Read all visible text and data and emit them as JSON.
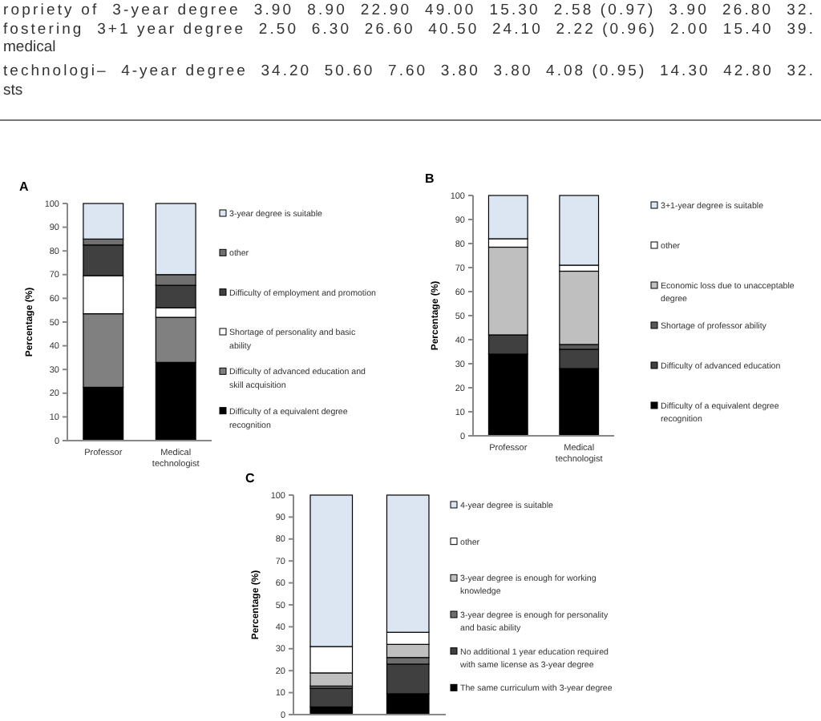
{
  "chart_data": [
    {
      "type": "other",
      "annotations": [
        "ropriety of  3-year degree  3.90  8.90  22.90  49.00  15.30  2.58 (0.97)  3.90  26.80  32.",
        "fostering  3+1 year degree  2.50  6.30  26.60  40.50  24.10  2.22 (0.96)  2.00  15.40  39.",
        "medical",
        "technologi–  4-year degree  34.20  50.60  7.60  3.80  3.80  4.08 (0.95)  14.30  42.80  32.",
        "sts"
      ]
    },
    {
      "type": "bar",
      "title": "A",
      "ylabel": "Percentage (%)",
      "categories": [
        "Professor",
        "Medical technologist"
      ],
      "stacked": true,
      "ylim": [
        0,
        100
      ],
      "yticks": [
        0,
        10,
        20,
        30,
        40,
        50,
        60,
        70,
        80,
        90,
        100
      ],
      "legend": "right",
      "series": [
        {
          "name": "Difficulty of a equivalent degree recognition",
          "color": "#000000",
          "values": [
            22.5,
            33
          ]
        },
        {
          "name": "Difficulty of advanced education and skill acquisition",
          "color": "#808080",
          "values": [
            31,
            19
          ]
        },
        {
          "name": "Shortage of personality and basic ability",
          "color": "#ffffff",
          "values": [
            16,
            4
          ]
        },
        {
          "name": "Difficulty of employment and promotion",
          "color": "#404040",
          "values": [
            13,
            9.5
          ]
        },
        {
          "name": "other",
          "color": "#707070",
          "values": [
            2.5,
            4.5
          ]
        },
        {
          "name": "3-year degree is suitable",
          "color": "#dce6f2",
          "values": [
            15,
            30
          ]
        }
      ]
    },
    {
      "type": "bar",
      "title": "B",
      "ylabel": "Percentage (%)",
      "categories": [
        "Professor",
        "Medical technologist"
      ],
      "stacked": true,
      "ylim": [
        0,
        100
      ],
      "yticks": [
        0,
        10,
        20,
        30,
        40,
        50,
        60,
        70,
        80,
        90,
        100
      ],
      "legend": "right",
      "series": [
        {
          "name": "Difficulty of a equivalent degree recognition",
          "color": "#000000",
          "values": [
            34,
            28
          ]
        },
        {
          "name": "Difficulty of advanced education",
          "color": "#404040",
          "values": [
            8,
            8
          ]
        },
        {
          "name": "Shortage of professor ability",
          "color": "#595959",
          "values": [
            0,
            2
          ]
        },
        {
          "name": "Economic loss due to unacceptable degree",
          "color": "#bfbfbf",
          "values": [
            36.5,
            30.5
          ]
        },
        {
          "name": "other",
          "color": "#ffffff",
          "values": [
            3.5,
            2.5
          ]
        },
        {
          "name": "3+1-year degree is suitable",
          "color": "#dce6f2",
          "values": [
            18,
            29
          ]
        }
      ]
    },
    {
      "type": "bar",
      "title": "C",
      "ylabel": "Percentage (%)",
      "categories": [
        null,
        null
      ],
      "stacked": true,
      "ylim": [
        0,
        100
      ],
      "yticks": [
        0,
        10,
        20,
        30,
        40,
        50,
        60,
        70,
        80,
        90,
        100
      ],
      "legend": "right",
      "series": [
        {
          "name": "The same curriculum with 3-year degree",
          "color": "#000000",
          "values": [
            3.5,
            9.5
          ]
        },
        {
          "name": "No additional 1 year education required with same license as 3-year degree",
          "color": "#404040",
          "values": [
            8.5,
            13.5
          ]
        },
        {
          "name": "3-year degree is enough for personality and basic ability",
          "color": "#6e6e6e",
          "values": [
            1,
            3
          ]
        },
        {
          "name": "3-year degree is enough for working knowledge",
          "color": "#bfbfbf",
          "values": [
            6,
            6
          ]
        },
        {
          "name": "other",
          "color": "#ffffff",
          "values": [
            12,
            5.5
          ]
        },
        {
          "name": "4-year degree is suitable",
          "color": "#dce6f2",
          "values": [
            69,
            62.5
          ]
        }
      ]
    }
  ]
}
